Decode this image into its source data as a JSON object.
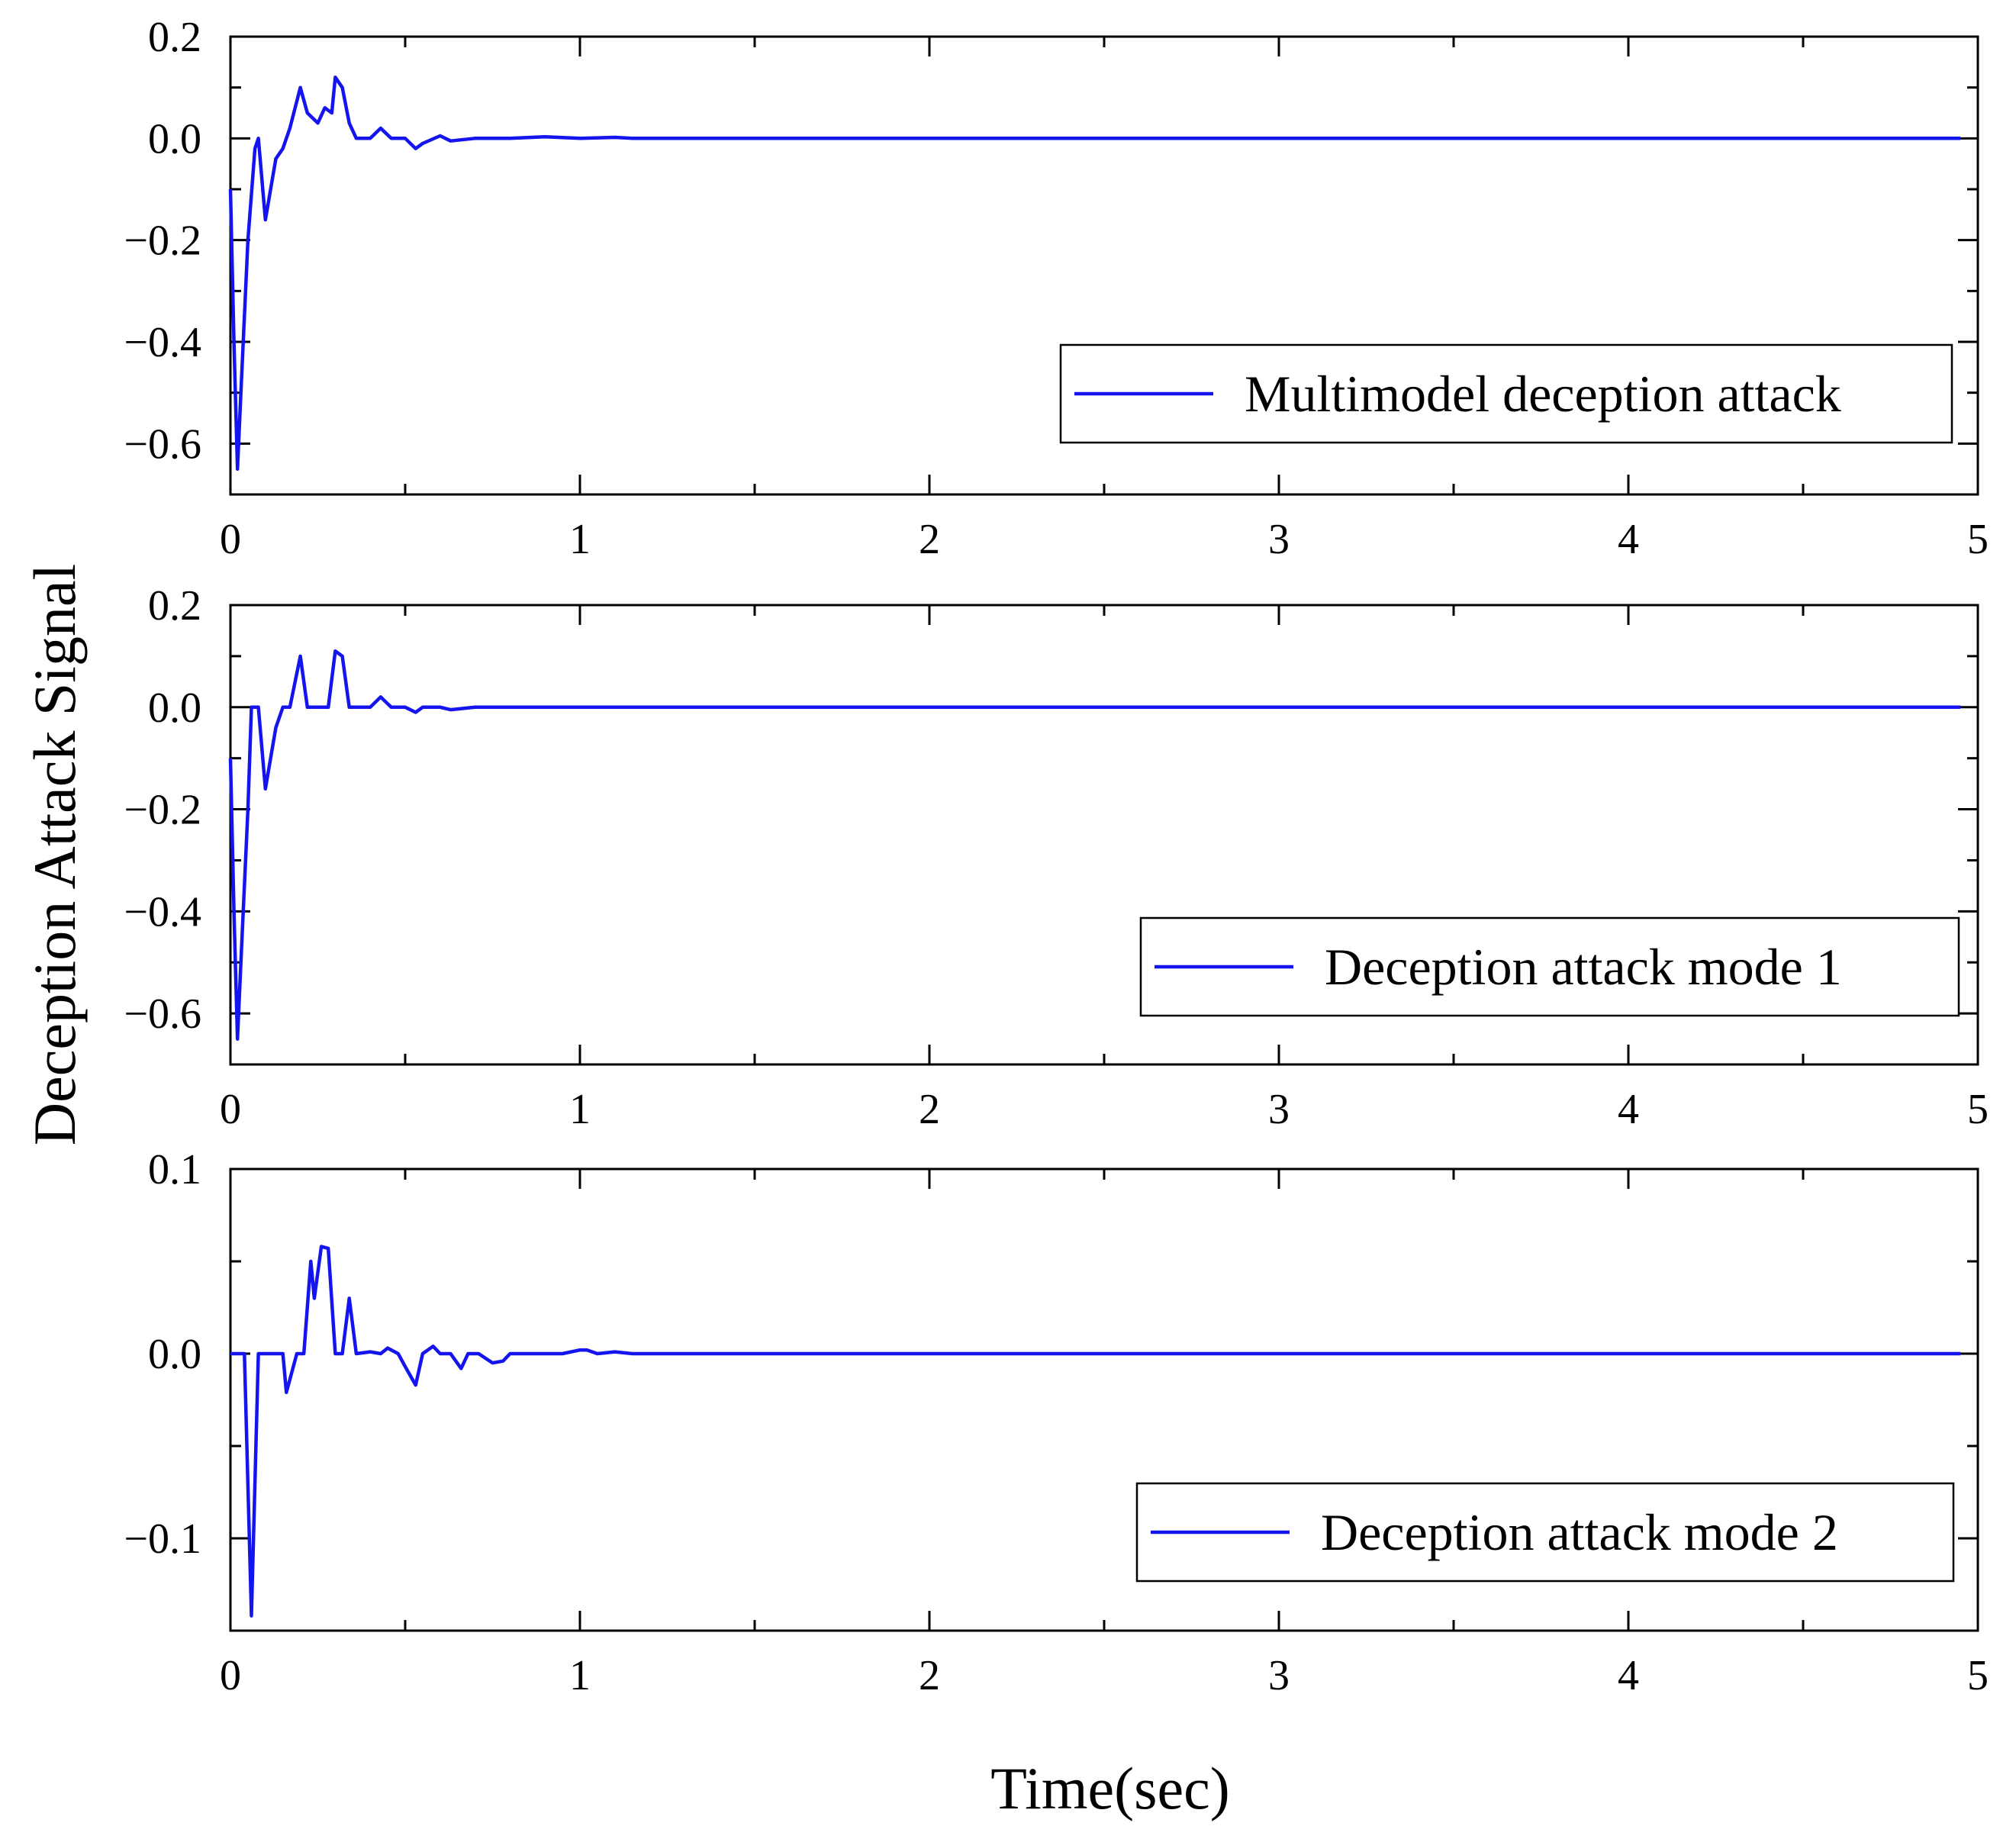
{
  "figure": {
    "ylabel": "Deception Attack Signal",
    "xlabel": "Time(sec)",
    "line_color": "#1414ee"
  },
  "chart_data": [
    {
      "type": "line",
      "title": "",
      "legend": "Multimodel deception attack",
      "legend_position": "right",
      "xlim": [
        0,
        5
      ],
      "ylim": [
        -0.7,
        0.2
      ],
      "xticks": [
        0,
        1,
        2,
        3,
        4,
        5
      ],
      "xtick_labels": [
        "0",
        "1",
        "2",
        "3",
        "4",
        "5"
      ],
      "yticks": [
        0.2,
        0.0,
        -0.2,
        -0.4,
        -0.6
      ],
      "ytick_labels": [
        "0.2",
        "0.0",
        "−0.2",
        "−0.4",
        "−0.6"
      ],
      "x": [
        0,
        0.01,
        0.02,
        0.03,
        0.05,
        0.07,
        0.08,
        0.1,
        0.13,
        0.15,
        0.17,
        0.2,
        0.22,
        0.25,
        0.27,
        0.29,
        0.3,
        0.32,
        0.34,
        0.36,
        0.4,
        0.43,
        0.46,
        0.5,
        0.53,
        0.55,
        0.6,
        0.63,
        0.7,
        0.8,
        0.9,
        1.0,
        1.1,
        1.15,
        4.95
      ],
      "y": [
        -0.1,
        -0.4,
        -0.65,
        -0.5,
        -0.2,
        -0.02,
        0.0,
        -0.16,
        -0.04,
        -0.02,
        0.02,
        0.1,
        0.05,
        0.03,
        0.06,
        0.05,
        0.12,
        0.1,
        0.03,
        0.0,
        0.0,
        0.02,
        0.0,
        0.0,
        -0.02,
        -0.01,
        0.005,
        -0.005,
        0.0,
        0.0,
        0.003,
        0.0,
        0.002,
        0.0,
        0.0
      ]
    },
    {
      "type": "line",
      "title": "",
      "legend": "Deception attack mode 1",
      "legend_position": "right",
      "xlim": [
        0,
        5
      ],
      "ylim": [
        -0.7,
        0.2
      ],
      "xticks": [
        0,
        1,
        2,
        3,
        4,
        5
      ],
      "xtick_labels": [
        "0",
        "1",
        "2",
        "3",
        "4",
        "5"
      ],
      "yticks": [
        0.2,
        0.0,
        -0.2,
        -0.4,
        -0.6
      ],
      "ytick_labels": [
        "0.2",
        "0.0",
        "−0.2",
        "−0.4",
        "−0.6"
      ],
      "x": [
        0,
        0.01,
        0.02,
        0.03,
        0.05,
        0.06,
        0.07,
        0.08,
        0.1,
        0.13,
        0.15,
        0.17,
        0.2,
        0.22,
        0.25,
        0.28,
        0.3,
        0.32,
        0.34,
        0.36,
        0.4,
        0.43,
        0.46,
        0.5,
        0.53,
        0.55,
        0.6,
        0.63,
        0.7,
        0.8,
        0.9,
        1.0,
        4.95
      ],
      "y": [
        -0.1,
        -0.4,
        -0.65,
        -0.5,
        -0.2,
        0.0,
        0.0,
        0.0,
        -0.16,
        -0.04,
        0.0,
        0.0,
        0.1,
        0.0,
        0.0,
        0.0,
        0.11,
        0.1,
        0.0,
        0.0,
        0.0,
        0.02,
        0.0,
        0.0,
        -0.01,
        0.0,
        0.0,
        -0.005,
        0.0,
        0.0,
        0.0,
        0.0,
        0.0
      ]
    },
    {
      "type": "line",
      "title": "",
      "legend": "Deception attack mode 2",
      "legend_position": "right",
      "xlim": [
        0,
        5
      ],
      "ylim": [
        -0.15,
        0.1
      ],
      "xticks": [
        0,
        1,
        2,
        3,
        4,
        5
      ],
      "xtick_labels": [
        "0",
        "1",
        "2",
        "3",
        "4",
        "5"
      ],
      "yticks": [
        0.1,
        0.0,
        -0.1
      ],
      "ytick_labels": [
        "0.1",
        "0.0",
        "−0.1"
      ],
      "x": [
        0.0,
        0.04,
        0.06,
        0.08,
        0.1,
        0.13,
        0.15,
        0.16,
        0.19,
        0.21,
        0.23,
        0.24,
        0.26,
        0.28,
        0.3,
        0.32,
        0.34,
        0.36,
        0.4,
        0.43,
        0.45,
        0.48,
        0.5,
        0.53,
        0.55,
        0.58,
        0.6,
        0.63,
        0.66,
        0.68,
        0.71,
        0.75,
        0.78,
        0.8,
        0.82,
        0.9,
        0.95,
        1.0,
        1.02,
        1.05,
        1.1,
        1.15,
        4.95
      ],
      "y": [
        0.0,
        0.0,
        -0.142,
        0.0,
        0.0,
        0.0,
        0.0,
        -0.021,
        0.0,
        0.0,
        0.05,
        0.03,
        0.058,
        0.057,
        0.0,
        0.0,
        0.03,
        0.0,
        0.001,
        0.0,
        0.003,
        0.0,
        -0.007,
        -0.017,
        0.0,
        0.004,
        0.0,
        0.0,
        -0.008,
        0.0,
        0.0,
        -0.005,
        -0.004,
        0.0,
        0.0,
        0.0,
        0.0,
        0.002,
        0.002,
        0.0,
        0.001,
        0.0,
        0.0
      ]
    }
  ]
}
